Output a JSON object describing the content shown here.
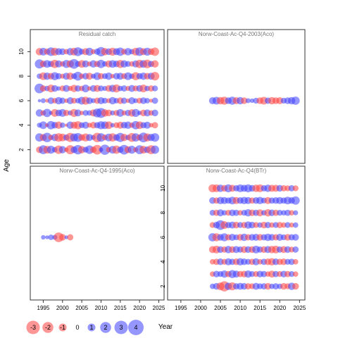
{
  "chart_data": {
    "type": "scatter",
    "title": "",
    "xlabel": "Year",
    "ylabel": "Age",
    "xlim": [
      1992,
      2026
    ],
    "ylim": [
      1,
      11
    ],
    "x_ticks": [
      1995,
      2000,
      2005,
      2010,
      2015,
      2020,
      2025
    ],
    "y_ticks": [
      2,
      4,
      6,
      8,
      10
    ],
    "colors": {
      "negative": "#ff4040",
      "positive": "#4040ff",
      "frame": "#333333",
      "strip": "#777777"
    },
    "legend": {
      "placement": "bottom-left",
      "items": [
        {
          "label": "-3",
          "value": -3
        },
        {
          "label": "-2",
          "value": -2
        },
        {
          "label": "-1",
          "value": -1
        },
        {
          "label": "0",
          "value": 0
        },
        {
          "label": "1",
          "value": 1
        },
        {
          "label": "2",
          "value": 2
        },
        {
          "label": "3",
          "value": 3
        },
        {
          "label": "4",
          "value": 4
        }
      ]
    },
    "panels": [
      {
        "name": "Residual catch",
        "ages": [
          2,
          3,
          4,
          5,
          6,
          7,
          8,
          9,
          10
        ],
        "year_start": 1994,
        "year_end": 2024,
        "residuals": [
          [
            -0.9,
            1.6,
            -1.2,
            1.3,
            0.6,
            -1.5,
            1.1,
            -0.4,
            -1.7,
            0.9,
            1.8,
            -1.1,
            0.7,
            1.5,
            -0.8,
            -1.9,
            0.4,
            2.1,
            -0.6,
            1.2,
            -1.4,
            0.8,
            1.9,
            -1.0,
            1.3,
            -0.5,
            1.6,
            -1.2,
            0.9,
            -1.6,
            1.4
          ],
          [
            1.4,
            -1.0,
            1.8,
            -0.6,
            1.1,
            -1.5,
            -1.2,
            0.8,
            -1.7,
            1.3,
            1.6,
            -0.9,
            -1.3,
            1.0,
            0.5,
            -1.8,
            1.5,
            -0.7,
            1.2,
            -1.4,
            0.9,
            1.7,
            -1.1,
            0.6,
            -1.6,
            1.4,
            -0.8,
            1.9,
            -1.3,
            1.1,
            1.5
          ],
          [
            0.5,
            1.2,
            -0.3,
            1.4,
            0.9,
            -1.1,
            0.6,
            -0.2,
            1.1,
            -1.0,
            -1.3,
            0.7,
            1.0,
            -0.5,
            -0.9,
            0.8,
            1.3,
            1.2,
            -1.2,
            0.4,
            -0.7,
            -1.0,
            0.9,
            1.1,
            -0.6,
            1.4,
            -1.2,
            0.8,
            1.0,
            -0.4,
            -0.8
          ],
          [
            1.1,
            -0.6,
            1.4,
            0.3,
            -1.2,
            0.9,
            1.2,
            -0.8,
            0.5,
            -1.3,
            1.0,
            -0.4,
            0.7,
            0.6,
            -1.0,
            1.6,
            2.0,
            -1.1,
            -0.9,
            0.5,
            -0.7,
            1.2,
            -0.5,
            0.8,
            -1.1,
            1.3,
            0.4,
            -0.9,
            1.0,
            -0.6,
            0.9
          ],
          [
            0.2,
            0.5,
            -0.3,
            0.9,
            -0.6,
            1.1,
            0.8,
            -0.4,
            1.0,
            -0.7,
            0.6,
            1.2,
            -1.3,
            0.9,
            0.5,
            -0.8,
            1.0,
            0.7,
            -0.5,
            1.1,
            0.6,
            -0.9,
            0.8,
            -0.4,
            1.0,
            0.5,
            -0.7,
            0.9,
            0.6,
            -0.3,
            0.8
          ],
          [
            1.9,
            -0.8,
            0.6,
            -1.2,
            0.9,
            0.4,
            -0.7,
            1.0,
            -0.5,
            -1.1,
            0.8,
            -0.6,
            1.2,
            -0.4,
            0.9,
            -1.0,
            0.7,
            0.5,
            -0.9,
            1.1,
            -1.3,
            0.6,
            0.8,
            -0.5,
            1.0,
            -0.7,
            0.9,
            -1.2,
            0.6,
            -0.8,
            0.7
          ],
          [
            0.6,
            -1.2,
            1.1,
            -0.9,
            1.3,
            0.8,
            -0.5,
            1.0,
            -1.1,
            0.7,
            1.6,
            -0.6,
            0.9,
            -1.0,
            0.5,
            1.2,
            -0.8,
            0.7,
            1.1,
            -0.4,
            0.9,
            1.0,
            -0.7,
            1.2,
            0.6,
            -1.3,
            0.8,
            1.1,
            -0.9,
            1.0,
            -1.5
          ],
          [
            1.7,
            -0.9,
            1.2,
            0.8,
            -1.4,
            1.0,
            -0.6,
            1.3,
            -1.1,
            1.9,
            0.7,
            -1.2,
            1.0,
            -0.5,
            1.1,
            -0.8,
            1.4,
            0.6,
            -1.0,
            1.2,
            0.9,
            -1.3,
            1.1,
            0.7,
            -0.6,
            1.0,
            -1.4,
            1.2,
            -1.5,
            0.8,
            -1.1
          ],
          [
            -1.1,
            1.2,
            -0.8,
            1.5,
            -1.3,
            1.0,
            0.9,
            -0.6,
            1.1,
            -1.2,
            1.6,
            0.7,
            -1.0,
            1.3,
            -0.5,
            0.8,
            1.8,
            -1.1,
            0.9,
            -1.3,
            1.0,
            1.4,
            -0.7,
            1.1,
            0.6,
            -1.2,
            1.5,
            -1.0,
            1.3,
            -0.9,
            -1.4
          ]
        ]
      },
      {
        "name": "Norw-Coast-Ac-Q4-2003(Aco)",
        "ages": [
          6
        ],
        "year_start": 2003,
        "year_end": 2024,
        "residuals": [
          [
            1.0,
            1.2,
            -1.1,
            -1.3,
            0.9,
            1.3,
            -1.0,
            1.1,
            -0.9,
            0.5,
            0.4,
            0.7,
            -0.9,
            -1.2,
            0.8,
            -1.1,
            -0.9,
            -1.0,
            0.7,
            0.9,
            1.1,
            1.4
          ]
        ]
      },
      {
        "name": "Norw-Coast-Ac-Q4-1995(Aco)",
        "ages": [
          6
        ],
        "year_start": 1995,
        "year_end": 2002,
        "residuals": [
          [
            0.4,
            0.3,
            0.6,
            0.5,
            -1.9,
            -0.9,
            0.3,
            -0.8
          ]
        ]
      },
      {
        "name": "Norw-Coast-Ac-Q4(BTr)",
        "ages": [
          2,
          3,
          4,
          5,
          6,
          7,
          8,
          9,
          10
        ],
        "year_start": 2003,
        "year_end": 2024,
        "residuals": [
          [
            0.6,
            0.9,
            -1.2,
            -2.1,
            1.1,
            -1.3,
            0.8,
            1.0,
            0.9,
            -0.8,
            -0.7,
            1.0,
            0.7,
            0.8,
            -0.9,
            0.6,
            0.8,
            0.6,
            -0.9,
            -0.7,
            1.1,
            -0.9
          ],
          [
            -0.6,
            0.9,
            0.7,
            1.1,
            -0.8,
            1.3,
            1.0,
            -0.8,
            -0.9,
            1.1,
            0.7,
            -0.7,
            0.9,
            0.8,
            -0.6,
            -1.0,
            0.8,
            -0.7,
            0.9,
            -0.8,
            0.7,
            -0.6
          ],
          [
            -0.6,
            -0.8,
            0.9,
            -0.7,
            1.0,
            0.8,
            -0.9,
            1.1,
            0.9,
            0.7,
            -0.8,
            1.0,
            -0.6,
            0.8,
            -0.9,
            -1.1,
            0.9,
            -0.8,
            -0.9,
            0.7,
            0.8,
            -0.6
          ],
          [
            -1.0,
            -1.2,
            0.9,
            -0.8,
            1.1,
            -0.9,
            1.0,
            0.8,
            -1.0,
            0.9,
            -0.9,
            1.2,
            0.8,
            -0.9,
            1.0,
            -1.1,
            -1.2,
            0.8,
            -1.0,
            0.9,
            -0.7,
            0.8
          ],
          [
            1.4,
            -1.3,
            0.9,
            1.3,
            -0.8,
            1.0,
            0.7,
            -0.9,
            1.1,
            -0.8,
            0.9,
            1.0,
            -0.9,
            0.8,
            1.1,
            0.9,
            -0.8,
            1.0,
            0.7,
            -0.9,
            0.8,
            0.9
          ],
          [
            -0.7,
            0.9,
            1.9,
            -1.2,
            0.8,
            1.0,
            -0.9,
            0.7,
            -0.8,
            1.1,
            0.9,
            -0.7,
            0.6,
            -0.9,
            0.8,
            -0.6,
            0.7,
            -0.8,
            -0.6,
            0.7,
            -0.5,
            0.6
          ],
          [
            0.7,
            -0.8,
            1.0,
            0.6,
            -0.7,
            0.9,
            0.8,
            -0.6,
            0.7,
            1.1,
            -0.9,
            0.8,
            -1.0,
            0.6,
            -1.1,
            0.9,
            -0.8,
            0.7,
            0.6,
            0.8,
            -0.6,
            0.5
          ],
          [
            0.9,
            -0.8,
            1.1,
            1.0,
            0.8,
            1.2,
            -1.0,
            0.9,
            1.1,
            1.0,
            -0.8,
            0.9,
            1.1,
            0.7,
            -1.0,
            0.8,
            0.9,
            1.0,
            0.8,
            1.2,
            0.9,
            1.4
          ],
          [
            -1.3,
            -1.2,
            1.1,
            -0.9,
            1.3,
            -1.0,
            0.8,
            1.2,
            1.0,
            1.3,
            0.9,
            -1.1,
            -1.2,
            0.8,
            1.1,
            -1.0,
            -1.0,
            0.9,
            -0.8,
            -0.7,
            0.8,
            -0.7
          ]
        ]
      }
    ]
  }
}
